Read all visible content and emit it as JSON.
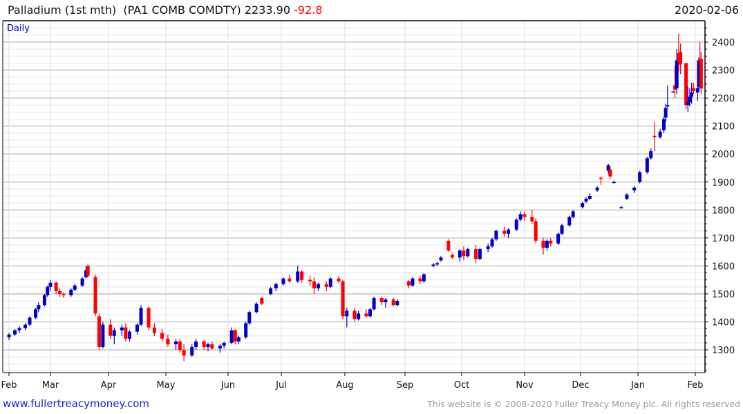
{
  "header": {
    "title": "Palladium (1st mth)  (PA1 COMB COMDTY) 2233.90",
    "change": "-92.8",
    "date": "2020-02-06"
  },
  "footer": {
    "link": "www.fullertreacymoney.com",
    "copyright": "This website is © 2008-2020 Fuller Treacy Money plc. All rights reserved"
  },
  "colors": {
    "up": "#0000cc",
    "down": "#ff0000",
    "change": "#ff0000",
    "label": "#0000cc"
  },
  "chart_data": {
    "type": "candlestick",
    "title": "Palladium (1st mth)",
    "period_label": "Daily",
    "ylim": [
      1220,
      2470
    ],
    "grid": true,
    "y_ticks": [
      1300,
      1400,
      1500,
      1600,
      1700,
      1800,
      1900,
      2000,
      2100,
      2200,
      2300,
      2400
    ],
    "x_ticks": [
      "Feb",
      "Mar",
      "Apr",
      "May",
      "Jun",
      "Jul",
      "Aug",
      "Sep",
      "Oct",
      "Nov",
      "Dec",
      "Jan",
      "Feb"
    ],
    "columns": [
      "date",
      "open",
      "high",
      "low",
      "close"
    ],
    "candles": [
      [
        "2019-02-01",
        1345,
        1360,
        1335,
        1355
      ],
      [
        "2019-02-05",
        1355,
        1375,
        1350,
        1370
      ],
      [
        "2019-02-08",
        1370,
        1385,
        1360,
        1378
      ],
      [
        "2019-02-12",
        1378,
        1395,
        1370,
        1390
      ],
      [
        "2019-02-15",
        1390,
        1420,
        1385,
        1415
      ],
      [
        "2019-02-19",
        1415,
        1450,
        1410,
        1445
      ],
      [
        "2019-02-21",
        1445,
        1470,
        1435,
        1460
      ],
      [
        "2019-02-25",
        1460,
        1500,
        1455,
        1495
      ],
      [
        "2019-02-27",
        1495,
        1530,
        1490,
        1525
      ],
      [
        "2019-03-01",
        1525,
        1550,
        1510,
        1540
      ],
      [
        "2019-03-04",
        1540,
        1545,
        1500,
        1510
      ],
      [
        "2019-03-06",
        1510,
        1520,
        1490,
        1500
      ],
      [
        "2019-03-08",
        1500,
        1505,
        1485,
        1495
      ],
      [
        "2019-03-12",
        1495,
        1520,
        1490,
        1515
      ],
      [
        "2019-03-14",
        1515,
        1535,
        1510,
        1530
      ],
      [
        "2019-03-18",
        1530,
        1560,
        1525,
        1555
      ],
      [
        "2019-03-20",
        1560,
        1600,
        1555,
        1585
      ],
      [
        "2019-03-21",
        1600,
        1605,
        1560,
        1565
      ],
      [
        "2019-03-25",
        1560,
        1570,
        1420,
        1430
      ],
      [
        "2019-03-27",
        1420,
        1430,
        1300,
        1310
      ],
      [
        "2019-03-29",
        1310,
        1400,
        1305,
        1390
      ],
      [
        "2019-04-02",
        1390,
        1410,
        1340,
        1350
      ],
      [
        "2019-04-04",
        1350,
        1380,
        1320,
        1370
      ],
      [
        "2019-04-08",
        1370,
        1390,
        1350,
        1380
      ],
      [
        "2019-04-10",
        1380,
        1395,
        1330,
        1340
      ],
      [
        "2019-04-12",
        1340,
        1370,
        1330,
        1365
      ],
      [
        "2019-04-16",
        1365,
        1395,
        1355,
        1390
      ],
      [
        "2019-04-18",
        1390,
        1460,
        1385,
        1450
      ],
      [
        "2019-04-22",
        1450,
        1455,
        1370,
        1380
      ],
      [
        "2019-04-25",
        1380,
        1395,
        1350,
        1360
      ],
      [
        "2019-04-29",
        1360,
        1375,
        1330,
        1340
      ],
      [
        "2019-05-02",
        1340,
        1355,
        1310,
        1320
      ],
      [
        "2019-05-06",
        1320,
        1340,
        1300,
        1330
      ],
      [
        "2019-05-08",
        1330,
        1340,
        1290,
        1300
      ],
      [
        "2019-05-10",
        1300,
        1320,
        1260,
        1280
      ],
      [
        "2019-05-14",
        1280,
        1320,
        1275,
        1310
      ],
      [
        "2019-05-16",
        1310,
        1340,
        1300,
        1330
      ],
      [
        "2019-05-20",
        1330,
        1335,
        1300,
        1310
      ],
      [
        "2019-05-22",
        1310,
        1325,
        1295,
        1320
      ],
      [
        "2019-05-24",
        1320,
        1330,
        1300,
        1305
      ],
      [
        "2019-05-28",
        1305,
        1320,
        1290,
        1315
      ],
      [
        "2019-05-30",
        1315,
        1330,
        1305,
        1325
      ],
      [
        "2019-06-03",
        1325,
        1380,
        1320,
        1370
      ],
      [
        "2019-06-05",
        1370,
        1375,
        1320,
        1330
      ],
      [
        "2019-06-07",
        1330,
        1350,
        1320,
        1345
      ],
      [
        "2019-06-11",
        1345,
        1400,
        1340,
        1395
      ],
      [
        "2019-06-13",
        1395,
        1440,
        1390,
        1435
      ],
      [
        "2019-06-17",
        1435,
        1470,
        1430,
        1465
      ],
      [
        "2019-06-20",
        1485,
        1490,
        1460,
        1465
      ],
      [
        "2019-06-25",
        1500,
        1525,
        1495,
        1520
      ],
      [
        "2019-06-28",
        1520,
        1540,
        1510,
        1535
      ],
      [
        "2019-07-02",
        1535,
        1560,
        1530,
        1555
      ],
      [
        "2019-07-05",
        1555,
        1570,
        1540,
        1545
      ],
      [
        "2019-07-09",
        1545,
        1600,
        1540,
        1580
      ],
      [
        "2019-07-11",
        1580,
        1585,
        1540,
        1550
      ],
      [
        "2019-07-15",
        1550,
        1565,
        1530,
        1545
      ],
      [
        "2019-07-17",
        1545,
        1560,
        1500,
        1520
      ],
      [
        "2019-07-19",
        1520,
        1540,
        1510,
        1535
      ],
      [
        "2019-07-23",
        1535,
        1545,
        1510,
        1525
      ],
      [
        "2019-07-25",
        1525,
        1560,
        1520,
        1555
      ],
      [
        "2019-07-29",
        1555,
        1565,
        1540,
        1545
      ],
      [
        "2019-07-31",
        1545,
        1550,
        1410,
        1420
      ],
      [
        "2019-08-02",
        1420,
        1450,
        1380,
        1440
      ],
      [
        "2019-08-06",
        1440,
        1450,
        1400,
        1410
      ],
      [
        "2019-08-08",
        1410,
        1440,
        1405,
        1430
      ],
      [
        "2019-08-12",
        1430,
        1445,
        1415,
        1420
      ],
      [
        "2019-08-14",
        1420,
        1450,
        1415,
        1445
      ],
      [
        "2019-08-16",
        1445,
        1490,
        1440,
        1485
      ],
      [
        "2019-08-20",
        1485,
        1490,
        1460,
        1470
      ],
      [
        "2019-08-22",
        1470,
        1485,
        1450,
        1480
      ],
      [
        "2019-08-26",
        1480,
        1485,
        1455,
        1460
      ],
      [
        "2019-08-28",
        1460,
        1480,
        1455,
        1475
      ],
      [
        "2019-09-03",
        1545,
        1550,
        1520,
        1530
      ],
      [
        "2019-09-05",
        1530,
        1560,
        1525,
        1555
      ],
      [
        "2019-09-09",
        1555,
        1565,
        1535,
        1545
      ],
      [
        "2019-09-11",
        1545,
        1575,
        1540,
        1570
      ],
      [
        "2019-09-16",
        1600,
        1610,
        1595,
        1605
      ],
      [
        "2019-09-18",
        1605,
        1615,
        1600,
        1610
      ],
      [
        "2019-09-20",
        1620,
        1635,
        1615,
        1630
      ],
      [
        "2019-09-24",
        1690,
        1695,
        1650,
        1655
      ],
      [
        "2019-09-26",
        1640,
        1645,
        1625,
        1630
      ],
      [
        "2019-09-30",
        1630,
        1660,
        1615,
        1655
      ],
      [
        "2019-10-02",
        1655,
        1670,
        1620,
        1635
      ],
      [
        "2019-10-04",
        1635,
        1665,
        1630,
        1660
      ],
      [
        "2019-10-08",
        1660,
        1675,
        1610,
        1625
      ],
      [
        "2019-10-10",
        1625,
        1665,
        1620,
        1660
      ],
      [
        "2019-10-14",
        1660,
        1680,
        1650,
        1670
      ],
      [
        "2019-10-16",
        1670,
        1700,
        1665,
        1695
      ],
      [
        "2019-10-18",
        1695,
        1730,
        1690,
        1725
      ],
      [
        "2019-10-22",
        1725,
        1740,
        1705,
        1715
      ],
      [
        "2019-10-24",
        1715,
        1735,
        1700,
        1730
      ],
      [
        "2019-10-28",
        1730,
        1770,
        1725,
        1765
      ],
      [
        "2019-10-30",
        1765,
        1795,
        1760,
        1785
      ],
      [
        "2019-11-01",
        1785,
        1795,
        1760,
        1775
      ],
      [
        "2019-11-05",
        1775,
        1800,
        1750,
        1760
      ],
      [
        "2019-11-07",
        1760,
        1770,
        1680,
        1690
      ],
      [
        "2019-11-11",
        1690,
        1700,
        1640,
        1665
      ],
      [
        "2019-11-13",
        1665,
        1695,
        1655,
        1690
      ],
      [
        "2019-11-15",
        1690,
        1700,
        1670,
        1680
      ],
      [
        "2019-11-19",
        1680,
        1720,
        1675,
        1715
      ],
      [
        "2019-11-21",
        1715,
        1750,
        1710,
        1745
      ],
      [
        "2019-11-25",
        1745,
        1780,
        1740,
        1775
      ],
      [
        "2019-11-27",
        1775,
        1800,
        1770,
        1795
      ],
      [
        "2019-12-02",
        1810,
        1830,
        1805,
        1825
      ],
      [
        "2019-12-04",
        1830,
        1845,
        1825,
        1840
      ],
      [
        "2019-12-06",
        1840,
        1860,
        1835,
        1850
      ],
      [
        "2019-12-10",
        1870,
        1885,
        1865,
        1880
      ],
      [
        "2019-12-12",
        1915,
        1920,
        1890,
        1912
      ],
      [
        "2019-12-16",
        1940,
        1965,
        1930,
        1960
      ],
      [
        "2019-12-17",
        1945,
        1955,
        1910,
        1920
      ],
      [
        "2019-12-19",
        1900,
        1905,
        1895,
        1900
      ],
      [
        "2019-12-23",
        1810,
        1815,
        1805,
        1810
      ],
      [
        "2019-12-26",
        1840,
        1860,
        1835,
        1855
      ],
      [
        "2019-12-30",
        1870,
        1885,
        1860,
        1880
      ],
      [
        "2020-01-02",
        1900,
        1940,
        1895,
        1935
      ],
      [
        "2020-01-06",
        1935,
        1990,
        1930,
        1985
      ],
      [
        "2020-01-08",
        1985,
        2020,
        1980,
        2010
      ],
      [
        "2020-01-10",
        2065,
        2115,
        2010,
        2060
      ],
      [
        "2020-01-13",
        2060,
        2090,
        2055,
        2080
      ],
      [
        "2020-01-15",
        2085,
        2135,
        2075,
        2125
      ],
      [
        "2020-01-16",
        2130,
        2180,
        2115,
        2165
      ],
      [
        "2020-01-17",
        2170,
        2245,
        2165,
        2175
      ],
      [
        "2020-01-20",
        2222,
        2225,
        2220,
        2223
      ],
      [
        "2020-01-21",
        2245,
        2315,
        2200,
        2230
      ],
      [
        "2020-01-22",
        2235,
        2375,
        2215,
        2335
      ],
      [
        "2020-01-23",
        2360,
        2430,
        2295,
        2330
      ],
      [
        "2020-01-24",
        2365,
        2395,
        2285,
        2320
      ],
      [
        "2020-01-27",
        2325,
        2325,
        2160,
        2175
      ],
      [
        "2020-01-28",
        2175,
        2240,
        2150,
        2185
      ],
      [
        "2020-01-29",
        2185,
        2235,
        2170,
        2205
      ],
      [
        "2020-01-30",
        2205,
        2255,
        2180,
        2220
      ],
      [
        "2020-01-31",
        2235,
        2255,
        2215,
        2225
      ],
      [
        "2020-02-03",
        2220,
        2245,
        2190,
        2235
      ],
      [
        "2020-02-04",
        2240,
        2345,
        2225,
        2335
      ],
      [
        "2020-02-05",
        2340,
        2400,
        2320,
        2330
      ],
      [
        "2020-02-06",
        2340,
        2365,
        2215,
        2234
      ]
    ]
  }
}
